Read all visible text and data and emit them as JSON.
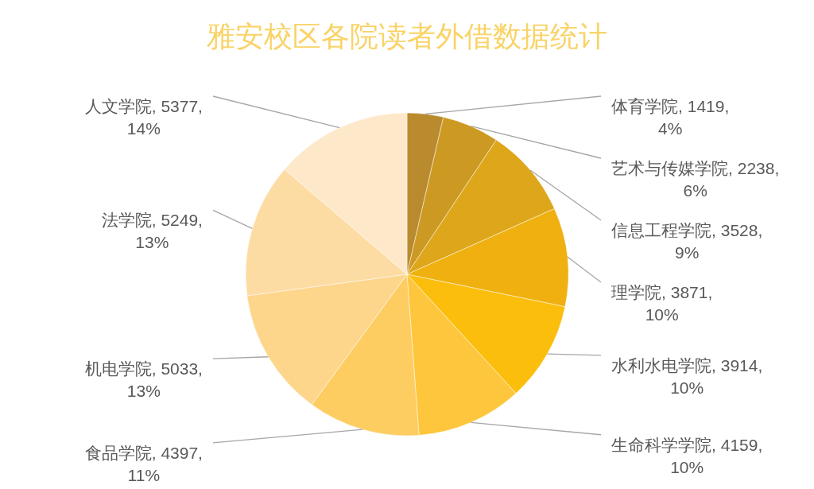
{
  "chart_data": {
    "type": "pie",
    "title": "雅安校区各院读者外借数据统计",
    "categories": [
      "体育学院",
      "艺术与传媒学院",
      "信息工程学院",
      "理学院",
      "水利水电学院",
      "生命科学学院",
      "食品学院",
      "机电学院",
      "法学院",
      "人文学院"
    ],
    "values": [
      1419,
      2238,
      3528,
      3871,
      3914,
      4159,
      4397,
      5033,
      5249,
      5377
    ],
    "colors": [
      "#b98a2e",
      "#cc9a22",
      "#dea61a",
      "#efb010",
      "#fcbe0c",
      "#fdc63c",
      "#fdcd62",
      "#fdd68c",
      "#fddca4",
      "#fee8ca"
    ],
    "value_labels": [
      "1419, 4%",
      "2238, 6%",
      "3528, 9%",
      "3871, 10%",
      "3914, 10%",
      "4159, 10%",
      "4397, 11%",
      "5033, 13%",
      "5249, 13%",
      "5377, 14%"
    ]
  }
}
